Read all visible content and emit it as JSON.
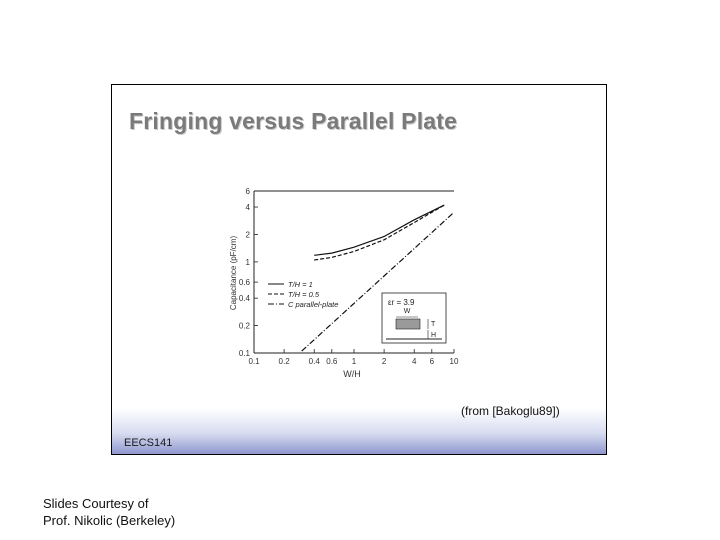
{
  "slide": {
    "title": "Fringing versus Parallel Plate",
    "course_tag": "EECS141",
    "source_note": "(from [Bakoglu89])"
  },
  "credit": {
    "line1": "Slides Courtesy of",
    "line2": "Prof. Nikolic (Berkeley)"
  },
  "chart_data": {
    "type": "line",
    "xlabel": "W/H",
    "ylabel": "Capacitance (pF/cm)",
    "xscale": "log",
    "yscale": "log",
    "xlim": [
      0.1,
      10
    ],
    "ylim": [
      0.1,
      6
    ],
    "xticks": [
      "0.1",
      "0.2",
      "0.4",
      "0.6",
      "1",
      "2",
      "4",
      "6",
      "10"
    ],
    "yticks": [
      "0.1",
      "0.2",
      "0.4",
      "0.6",
      "1",
      "2",
      "4",
      "6"
    ],
    "grid": false,
    "legend_position": "center-left",
    "series": [
      {
        "name": "T/H = 1",
        "style": "solid",
        "x": [
          0.4,
          0.6,
          1,
          2,
          4,
          6,
          8
        ],
        "y": [
          1.18,
          1.25,
          1.45,
          1.9,
          2.9,
          3.6,
          4.2
        ]
      },
      {
        "name": "T/H = 0.5",
        "style": "dashed",
        "x": [
          0.4,
          0.6,
          1,
          2,
          4,
          6,
          8
        ],
        "y": [
          1.05,
          1.12,
          1.3,
          1.75,
          2.7,
          3.5,
          4.2
        ]
      },
      {
        "name": "C parallel-plate",
        "style": "dashdot",
        "x": [
          0.3,
          1,
          2,
          4,
          10
        ],
        "y": [
          0.105,
          0.35,
          0.7,
          1.4,
          3.5
        ]
      }
    ],
    "inset": {
      "epsilon_label": "εr = 3.9",
      "w_label": "W",
      "t_label": "T",
      "h_label": "H"
    }
  }
}
